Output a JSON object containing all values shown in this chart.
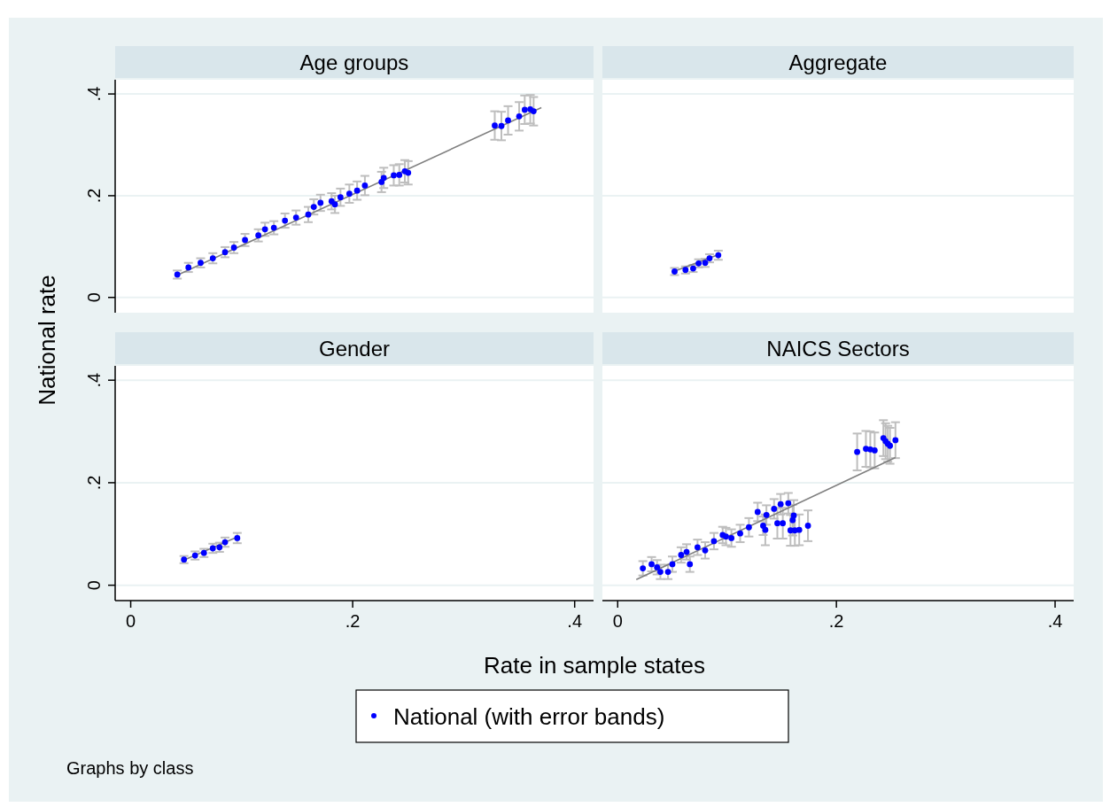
{
  "chart_data": [
    {
      "type": "scatter",
      "title": "Age groups",
      "ylabel": "National rate",
      "xlim": [
        -0.014,
        0.417
      ],
      "ylim": [
        -0.03,
        0.428
      ],
      "yticks": [
        {
          "value": 0,
          "label": "0"
        },
        {
          "value": 0.2,
          "label": ".2"
        },
        {
          "value": 0.4,
          "label": ".4"
        }
      ],
      "tick_labels": "y",
      "grid": "y",
      "marker": "circle",
      "series": [
        {
          "color": "#0000ff",
          "errors": [
            0.008,
            0.009,
            0.009,
            0.01,
            0.01,
            0.011,
            0.012,
            0.012,
            0.013,
            0.013,
            0.014,
            0.014,
            0.015,
            0.015,
            0.016,
            0.016,
            0.017,
            0.017,
            0.018,
            0.018,
            0.019,
            0.02,
            0.02,
            0.02,
            0.021,
            0.022,
            0.023,
            0.028,
            0.028,
            0.028,
            0.028,
            0.028,
            0.028,
            0.028
          ],
          "x": [
            0.042,
            0.052,
            0.063,
            0.074,
            0.085,
            0.093,
            0.103,
            0.115,
            0.121,
            0.129,
            0.139,
            0.149,
            0.16,
            0.165,
            0.171,
            0.181,
            0.184,
            0.189,
            0.197,
            0.204,
            0.211,
            0.226,
            0.228,
            0.237,
            0.242,
            0.247,
            0.25,
            0.328,
            0.334,
            0.34,
            0.35,
            0.355,
            0.36,
            0.363
          ],
          "values": [
            0.045,
            0.059,
            0.068,
            0.077,
            0.089,
            0.098,
            0.113,
            0.122,
            0.134,
            0.137,
            0.151,
            0.157,
            0.163,
            0.178,
            0.186,
            0.189,
            0.183,
            0.197,
            0.204,
            0.21,
            0.22,
            0.227,
            0.235,
            0.24,
            0.241,
            0.248,
            0.245,
            0.338,
            0.337,
            0.348,
            0.356,
            0.369,
            0.37,
            0.366
          ]
        },
        {
          "type": "line",
          "marker": "none",
          "color": "#808080",
          "x": [
            0.04,
            0.37
          ],
          "values": [
            0.042,
            0.373
          ]
        }
      ]
    },
    {
      "type": "scatter",
      "title": "Aggregate",
      "xlim": [
        -0.014,
        0.417
      ],
      "ylim": [
        -0.03,
        0.428
      ],
      "yticks": [
        0,
        0.2,
        0.4
      ],
      "tick_labels": false,
      "grid": "y",
      "marker": "circle",
      "series": [
        {
          "color": "#0000ff",
          "errors": [
            0.007,
            0.007,
            0.007,
            0.008,
            0.008,
            0.008,
            0.009
          ],
          "x": [
            0.052,
            0.062,
            0.069,
            0.074,
            0.08,
            0.084,
            0.092
          ],
          "values": [
            0.051,
            0.054,
            0.057,
            0.067,
            0.068,
            0.077,
            0.083
          ]
        },
        {
          "type": "line",
          "marker": "none",
          "color": "#808080",
          "x": [
            0.05,
            0.092
          ],
          "values": [
            0.05,
            0.084
          ]
        }
      ]
    },
    {
      "type": "scatter",
      "title": "Gender",
      "xlim": [
        -0.014,
        0.417
      ],
      "ylim": [
        -0.03,
        0.428
      ],
      "xticks": [
        {
          "value": 0,
          "label": "0"
        },
        {
          "value": 0.2,
          "label": ".2"
        },
        {
          "value": 0.4,
          "label": ".4"
        }
      ],
      "yticks": [
        {
          "value": 0,
          "label": "0"
        },
        {
          "value": 0.2,
          "label": ".2"
        },
        {
          "value": 0.4,
          "label": ".4"
        }
      ],
      "grid": "y",
      "marker": "circle",
      "series": [
        {
          "color": "#0000ff",
          "errors": [
            0.007,
            0.008,
            0.008,
            0.009,
            0.009,
            0.009,
            0.01
          ],
          "x": [
            0.048,
            0.058,
            0.066,
            0.074,
            0.08,
            0.085,
            0.096
          ],
          "values": [
            0.05,
            0.058,
            0.063,
            0.072,
            0.074,
            0.084,
            0.092
          ]
        },
        {
          "type": "line",
          "marker": "none",
          "color": "#808080",
          "x": [
            0.048,
            0.096
          ],
          "values": [
            0.049,
            0.094
          ]
        }
      ]
    },
    {
      "type": "scatter",
      "title": "NAICS Sectors",
      "xlabel": "Rate in sample states",
      "annotations": [
        "Graphs by class"
      ],
      "legend": "bottom",
      "xlim": [
        -0.014,
        0.417
      ],
      "ylim": [
        -0.03,
        0.428
      ],
      "xticks": [
        {
          "value": 0,
          "label": "0"
        },
        {
          "value": 0.2,
          "label": ".2"
        },
        {
          "value": 0.4,
          "label": ".4"
        }
      ],
      "yticks": [
        0,
        0.2,
        0.4
      ],
      "tick_labels": "x",
      "grid": "y",
      "marker": "circle",
      "series": [
        {
          "name": "National (with error bands)",
          "color": "#0000ff",
          "errors": [
            0.014,
            0.014,
            0.014,
            0.014,
            0.014,
            0.015,
            0.015,
            0.015,
            0.015,
            0.015,
            0.016,
            0.016,
            0.016,
            0.017,
            0.017,
            0.017,
            0.018,
            0.018,
            0.018,
            0.019,
            0.019,
            0.02,
            0.02,
            0.03,
            0.03,
            0.03,
            0.03,
            0.03,
            0.03,
            0.03,
            0.03,
            0.03,
            0.036,
            0.035,
            0.035,
            0.035,
            0.035,
            0.035,
            0.035,
            0.035,
            0.035
          ],
          "x": [
            0.023,
            0.031,
            0.036,
            0.039,
            0.046,
            0.05,
            0.058,
            0.063,
            0.066,
            0.073,
            0.08,
            0.088,
            0.096,
            0.099,
            0.104,
            0.112,
            0.12,
            0.128,
            0.133,
            0.136,
            0.143,
            0.149,
            0.156,
            0.135,
            0.146,
            0.151,
            0.158,
            0.16,
            0.161,
            0.162,
            0.166,
            0.174,
            0.219,
            0.227,
            0.231,
            0.235,
            0.243,
            0.245,
            0.247,
            0.249,
            0.254
          ],
          "values": [
            0.033,
            0.041,
            0.035,
            0.026,
            0.026,
            0.041,
            0.059,
            0.065,
            0.041,
            0.074,
            0.068,
            0.086,
            0.098,
            0.095,
            0.092,
            0.101,
            0.113,
            0.143,
            0.116,
            0.137,
            0.149,
            0.158,
            0.16,
            0.108,
            0.121,
            0.121,
            0.107,
            0.127,
            0.136,
            0.107,
            0.108,
            0.116,
            0.26,
            0.266,
            0.265,
            0.263,
            0.287,
            0.281,
            0.276,
            0.272,
            0.283
          ]
        },
        {
          "type": "line",
          "marker": "none",
          "color": "#808080",
          "x": [
            0.017,
            0.254
          ],
          "values": [
            0.011,
            0.249
          ]
        }
      ]
    }
  ]
}
